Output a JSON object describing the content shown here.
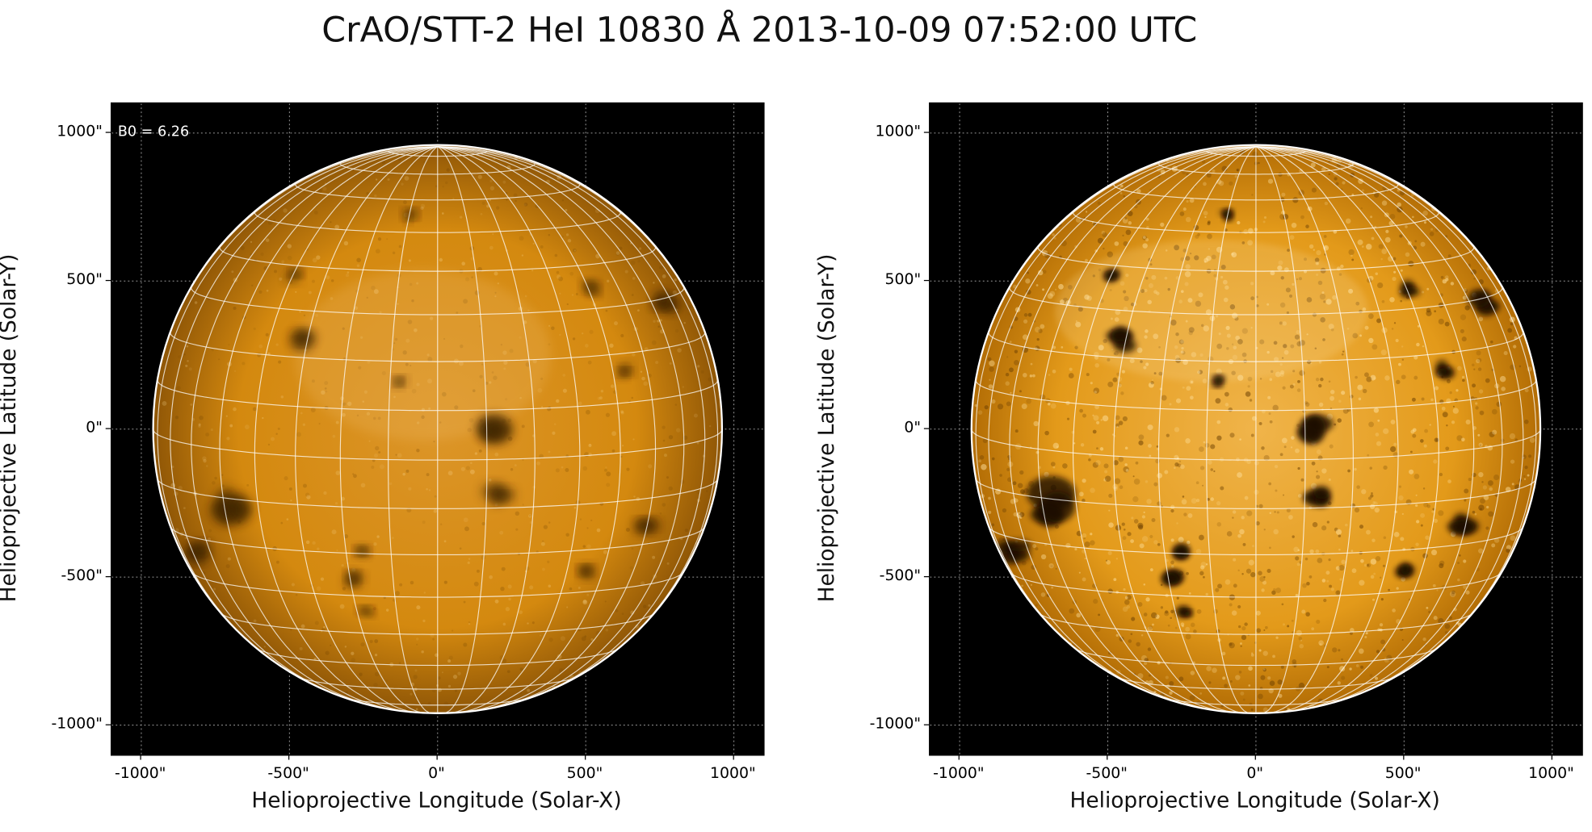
{
  "title": "CrAO/STT-2 HeI 10830 Å 2013-10-09 07:52:00 UTC",
  "panels": [
    {
      "id": "left",
      "xlabel": "Helioprojective Longitude (Solar-X)",
      "ylabel": "Helioprojective Latitude (Solar-Y)",
      "annotation": "B0 = 6.26",
      "xticks": [
        "-1000\"",
        "-500\"",
        "0\"",
        "500\"",
        "1000\""
      ],
      "yticks": [
        "1000\"",
        "500\"",
        "0\"",
        "-500\"",
        "-1000\""
      ],
      "contrast": "normal"
    },
    {
      "id": "right",
      "xlabel": "Helioprojective Longitude (Solar-X)",
      "ylabel": "Helioprojective Latitude (Solar-Y)",
      "annotation": "",
      "xticks": [
        "-1000\"",
        "-500\"",
        "0\"",
        "500\"",
        "1000\""
      ],
      "yticks": [
        "1000\"",
        "500\"",
        "0\"",
        "-500\"",
        "-1000\""
      ],
      "contrast": "enhanced"
    }
  ],
  "image": {
    "colormap": "orange solar (sdoaia-like)",
    "disk_color": "#d4890f",
    "disk_color_enhanced": "#e39a1a",
    "background_color": "#000000",
    "grid_color": "#ffffff",
    "solar_radius_arcsec": 960,
    "xlim": [
      -1100,
      1100
    ],
    "ylim": [
      -1100,
      1100
    ],
    "grid_spacing_deg": 10,
    "b0_deg": 6.26,
    "dark_features_arcsec": [
      [
        200,
        10,
        55
      ],
      [
        210,
        -230,
        40
      ],
      [
        -480,
        520,
        25
      ],
      [
        -450,
        300,
        40
      ],
      [
        -680,
        -250,
        70
      ],
      [
        -820,
        -410,
        45
      ],
      [
        -280,
        -500,
        30
      ],
      [
        -250,
        -420,
        25
      ],
      [
        520,
        470,
        25
      ],
      [
        770,
        430,
        35
      ],
      [
        700,
        -320,
        40
      ],
      [
        500,
        -480,
        25
      ],
      [
        -240,
        -620,
        20
      ],
      [
        -90,
        720,
        20
      ],
      [
        630,
        200,
        25
      ],
      [
        -130,
        160,
        20
      ]
    ]
  }
}
